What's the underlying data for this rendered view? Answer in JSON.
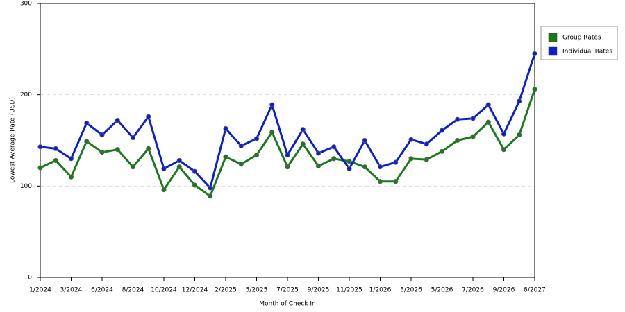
{
  "chart_data": {
    "type": "line",
    "x_label": "Month of Check In",
    "y_label": "Lowest Average Rate (USD)",
    "categories": [
      "1/2024",
      null,
      "3/2024",
      null,
      "6/2024",
      null,
      "8/2024",
      null,
      "10/2024",
      null,
      "12/2024",
      null,
      "2/2025",
      null,
      "5/2025",
      null,
      "7/2025",
      null,
      "9/2025",
      null,
      "11/2025",
      null,
      "1/2026",
      null,
      "3/2026",
      null,
      "5/2026",
      null,
      "7/2026",
      null,
      "9/2026",
      null,
      "8/2027"
    ],
    "series": [
      {
        "name": "Group Rates",
        "color": "#1a7a1a",
        "values": [
          120,
          128,
          110,
          149,
          137,
          140,
          121,
          141,
          96,
          121,
          101,
          89,
          132,
          124,
          134,
          159,
          121,
          146,
          122,
          130,
          127,
          121,
          105,
          105,
          130,
          129,
          138,
          150,
          154,
          170,
          140,
          156,
          206
        ]
      },
      {
        "name": "Individual Rates",
        "color": "#0a1fd0",
        "values": [
          143,
          141,
          130,
          169,
          156,
          172,
          153,
          176,
          119,
          128,
          116,
          98,
          163,
          144,
          152,
          189,
          134,
          162,
          136,
          143,
          119,
          150,
          121,
          126,
          151,
          146,
          161,
          173,
          174,
          189,
          157,
          193,
          245
        ]
      }
    ],
    "ylim": [
      0,
      300
    ],
    "yticks": [
      0,
      100,
      200,
      300
    ],
    "grid": true,
    "legend": "right"
  }
}
